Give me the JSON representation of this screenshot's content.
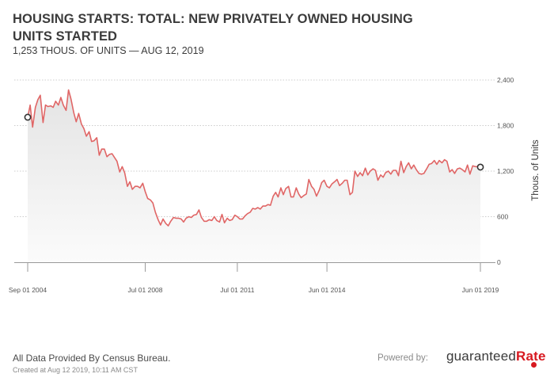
{
  "title": "HOUSING STARTS: TOTAL: NEW PRIVATELY OWNED HOUSING UNITS STARTED",
  "subtitle": "1,253 THOUS. OF UNITS — AUG 12, 2019",
  "footer": {
    "source": "All Data Provided By Census Bureau.",
    "created": "Created at Aug 12 2019, 10:11 AM CST",
    "powered_by": "Powered by:",
    "brand_main": "guaranteed",
    "brand_accent": "Rate"
  },
  "colors": {
    "line": "#e06666",
    "grid": "#cccccc",
    "fill_top": "#e6e6e6",
    "brand": "#d71920"
  },
  "chart_data": {
    "type": "line",
    "ylabel": "Thous. of Units",
    "ylim": [
      0,
      2400
    ],
    "yticks": [
      0,
      600,
      1200,
      1800,
      2400
    ],
    "ytick_labels": [
      "0",
      "600",
      "1,200",
      "1,800",
      "2,400"
    ],
    "xlim": [
      2004.67,
      2019.42
    ],
    "xticks": [
      2004.67,
      2008.5,
      2011.5,
      2014.42,
      2019.42
    ],
    "xtick_labels": [
      "Sep 01 2004",
      "Jul 01 2008",
      "Jul 01 2011",
      "Jun 01 2014",
      "Jun 01 2019"
    ],
    "series": [
      {
        "name": "Housing Starts",
        "x": [
          2004.67,
          2004.75,
          2004.83,
          2004.92,
          2005.0,
          2005.08,
          2005.17,
          2005.25,
          2005.33,
          2005.42,
          2005.5,
          2005.58,
          2005.67,
          2005.75,
          2005.83,
          2005.92,
          2006.0,
          2006.08,
          2006.17,
          2006.25,
          2006.33,
          2006.42,
          2006.5,
          2006.58,
          2006.67,
          2006.75,
          2006.83,
          2006.92,
          2007.0,
          2007.08,
          2007.17,
          2007.25,
          2007.33,
          2007.42,
          2007.5,
          2007.58,
          2007.67,
          2007.75,
          2007.83,
          2007.92,
          2008.0,
          2008.08,
          2008.17,
          2008.25,
          2008.33,
          2008.42,
          2008.5,
          2008.58,
          2008.67,
          2008.75,
          2008.83,
          2008.92,
          2009.0,
          2009.08,
          2009.17,
          2009.25,
          2009.33,
          2009.42,
          2009.5,
          2009.58,
          2009.67,
          2009.75,
          2009.83,
          2009.92,
          2010.0,
          2010.08,
          2010.17,
          2010.25,
          2010.33,
          2010.42,
          2010.5,
          2010.58,
          2010.67,
          2010.75,
          2010.83,
          2010.92,
          2011.0,
          2011.08,
          2011.17,
          2011.25,
          2011.33,
          2011.42,
          2011.5,
          2011.58,
          2011.67,
          2011.75,
          2011.83,
          2011.92,
          2012.0,
          2012.08,
          2012.17,
          2012.25,
          2012.33,
          2012.42,
          2012.5,
          2012.58,
          2012.67,
          2012.75,
          2012.83,
          2012.92,
          2013.0,
          2013.08,
          2013.17,
          2013.25,
          2013.33,
          2013.42,
          2013.5,
          2013.58,
          2013.67,
          2013.75,
          2013.83,
          2013.92,
          2014.0,
          2014.08,
          2014.17,
          2014.25,
          2014.33,
          2014.42,
          2014.5,
          2014.58,
          2014.67,
          2014.75,
          2014.83,
          2014.92,
          2015.0,
          2015.08,
          2015.17,
          2015.25,
          2015.33,
          2015.42,
          2015.5,
          2015.58,
          2015.67,
          2015.75,
          2015.83,
          2015.92,
          2016.0,
          2016.08,
          2016.17,
          2016.25,
          2016.33,
          2016.42,
          2016.5,
          2016.58,
          2016.67,
          2016.75,
          2016.83,
          2016.92,
          2017.0,
          2017.08,
          2017.17,
          2017.25,
          2017.33,
          2017.42,
          2017.5,
          2017.58,
          2017.67,
          2017.75,
          2017.83,
          2017.92,
          2018.0,
          2018.08,
          2018.17,
          2018.25,
          2018.33,
          2018.42,
          2018.5,
          2018.58,
          2018.67,
          2018.75,
          2018.83,
          2018.92,
          2019.0,
          2019.08,
          2019.17,
          2019.25,
          2019.33,
          2019.42
        ],
        "values": [
          1910,
          2070,
          1780,
          2040,
          2140,
          2200,
          1840,
          2070,
          2050,
          2060,
          2040,
          2120,
          2070,
          2170,
          2070,
          2000,
          2270,
          2150,
          1970,
          1850,
          1960,
          1820,
          1760,
          1660,
          1720,
          1590,
          1600,
          1640,
          1410,
          1490,
          1490,
          1390,
          1420,
          1430,
          1380,
          1330,
          1190,
          1260,
          1180,
          1000,
          1060,
          960,
          1000,
          1000,
          980,
          1040,
          930,
          840,
          820,
          780,
          660,
          560,
          490,
          570,
          510,
          480,
          540,
          590,
          580,
          580,
          570,
          530,
          580,
          600,
          590,
          620,
          630,
          690,
          590,
          540,
          540,
          560,
          550,
          600,
          550,
          530,
          630,
          520,
          580,
          550,
          560,
          620,
          600,
          570,
          570,
          610,
          640,
          660,
          710,
          700,
          720,
          700,
          740,
          740,
          760,
          750,
          870,
          920,
          860,
          980,
          890,
          970,
          1000,
          860,
          860,
          980,
          900,
          850,
          880,
          900,
          1090,
          1000,
          960,
          870,
          950,
          1050,
          1080,
          1000,
          980,
          1030,
          1060,
          1090,
          1010,
          1040,
          1080,
          1080,
          890,
          920,
          1200,
          1130,
          1180,
          1140,
          1240,
          1150,
          1200,
          1230,
          1210,
          1080,
          1150,
          1120,
          1180,
          1200,
          1160,
          1210,
          1210,
          1140,
          1330,
          1180,
          1260,
          1310,
          1230,
          1280,
          1220,
          1170,
          1160,
          1170,
          1230,
          1290,
          1300,
          1340,
          1290,
          1340,
          1310,
          1350,
          1330,
          1190,
          1220,
          1170,
          1230,
          1240,
          1220,
          1190,
          1280,
          1160,
          1270,
          1260,
          1260,
          1253
        ]
      }
    ]
  }
}
